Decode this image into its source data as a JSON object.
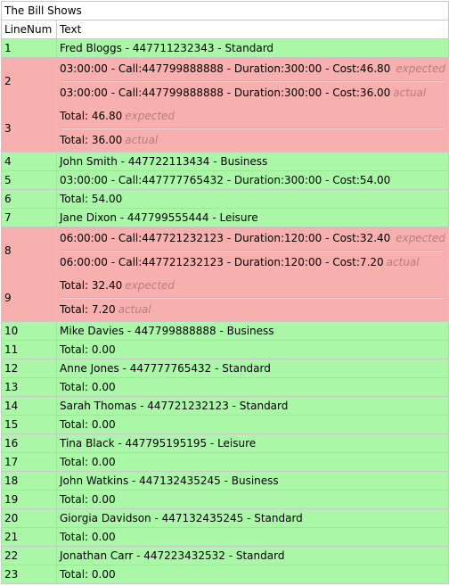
{
  "title": "The Bill Shows",
  "headers": {
    "line": "LineNum",
    "text": "Text"
  },
  "labels": {
    "expected": "expected",
    "actual": "actual"
  },
  "rows": [
    {
      "num": "1",
      "status": "pass",
      "text": "Fred Bloggs - 447711232343 - Standard"
    },
    {
      "num": "2",
      "status": "fail",
      "expected": "03:00:00 - Call:447799888888 - Duration:300:00 - Cost:46.80",
      "actual": "03:00:00 - Call:447799888888 - Duration:300:00 - Cost:36.00"
    },
    {
      "num": "3",
      "status": "fail",
      "expected": "Total: 46.80",
      "actual": "Total: 36.00"
    },
    {
      "num": "4",
      "status": "pass",
      "text": "John Smith - 447722113434 - Business"
    },
    {
      "num": "5",
      "status": "pass",
      "text": "03:00:00 - Call:447777765432 - Duration:300:00 - Cost:54.00"
    },
    {
      "num": "6",
      "status": "pass",
      "text": "Total: 54.00"
    },
    {
      "num": "7",
      "status": "pass",
      "text": "Jane Dixon - 447799555444 - Leisure"
    },
    {
      "num": "8",
      "status": "fail",
      "expected": "06:00:00 - Call:447721232123 - Duration:120:00 - Cost:32.40",
      "actual": "06:00:00 - Call:447721232123 - Duration:120:00 - Cost:7.20"
    },
    {
      "num": "9",
      "status": "fail",
      "expected": "Total: 32.40",
      "actual": "Total: 7.20"
    },
    {
      "num": "10",
      "status": "pass",
      "text": "Mike Davies - 447799888888 - Business"
    },
    {
      "num": "11",
      "status": "pass",
      "text": "Total: 0.00"
    },
    {
      "num": "12",
      "status": "pass",
      "text": "Anne Jones - 447777765432 - Standard"
    },
    {
      "num": "13",
      "status": "pass",
      "text": "Total: 0.00"
    },
    {
      "num": "14",
      "status": "pass",
      "text": "Sarah Thomas - 447721232123 - Standard"
    },
    {
      "num": "15",
      "status": "pass",
      "text": "Total: 0.00"
    },
    {
      "num": "16",
      "status": "pass",
      "text": "Tina Black - 447795195195 - Leisure"
    },
    {
      "num": "17",
      "status": "pass",
      "text": "Total: 0.00"
    },
    {
      "num": "18",
      "status": "pass",
      "text": "John Watkins - 447132435245 - Business"
    },
    {
      "num": "19",
      "status": "pass",
      "text": "Total: 0.00"
    },
    {
      "num": "20",
      "status": "pass",
      "text": "Giorgia Davidson - 447132435245 - Standard"
    },
    {
      "num": "21",
      "status": "pass",
      "text": "Total: 0.00"
    },
    {
      "num": "22",
      "status": "pass",
      "text": "Jonathan Carr - 447223432532 - Standard"
    },
    {
      "num": "23",
      "status": "pass",
      "text": "Total: 0.00"
    }
  ],
  "colors": {
    "pass": "#aaf7a8",
    "fail": "#f8b0ae",
    "tag": "#b57f7d",
    "border": "#c8c8c8"
  }
}
